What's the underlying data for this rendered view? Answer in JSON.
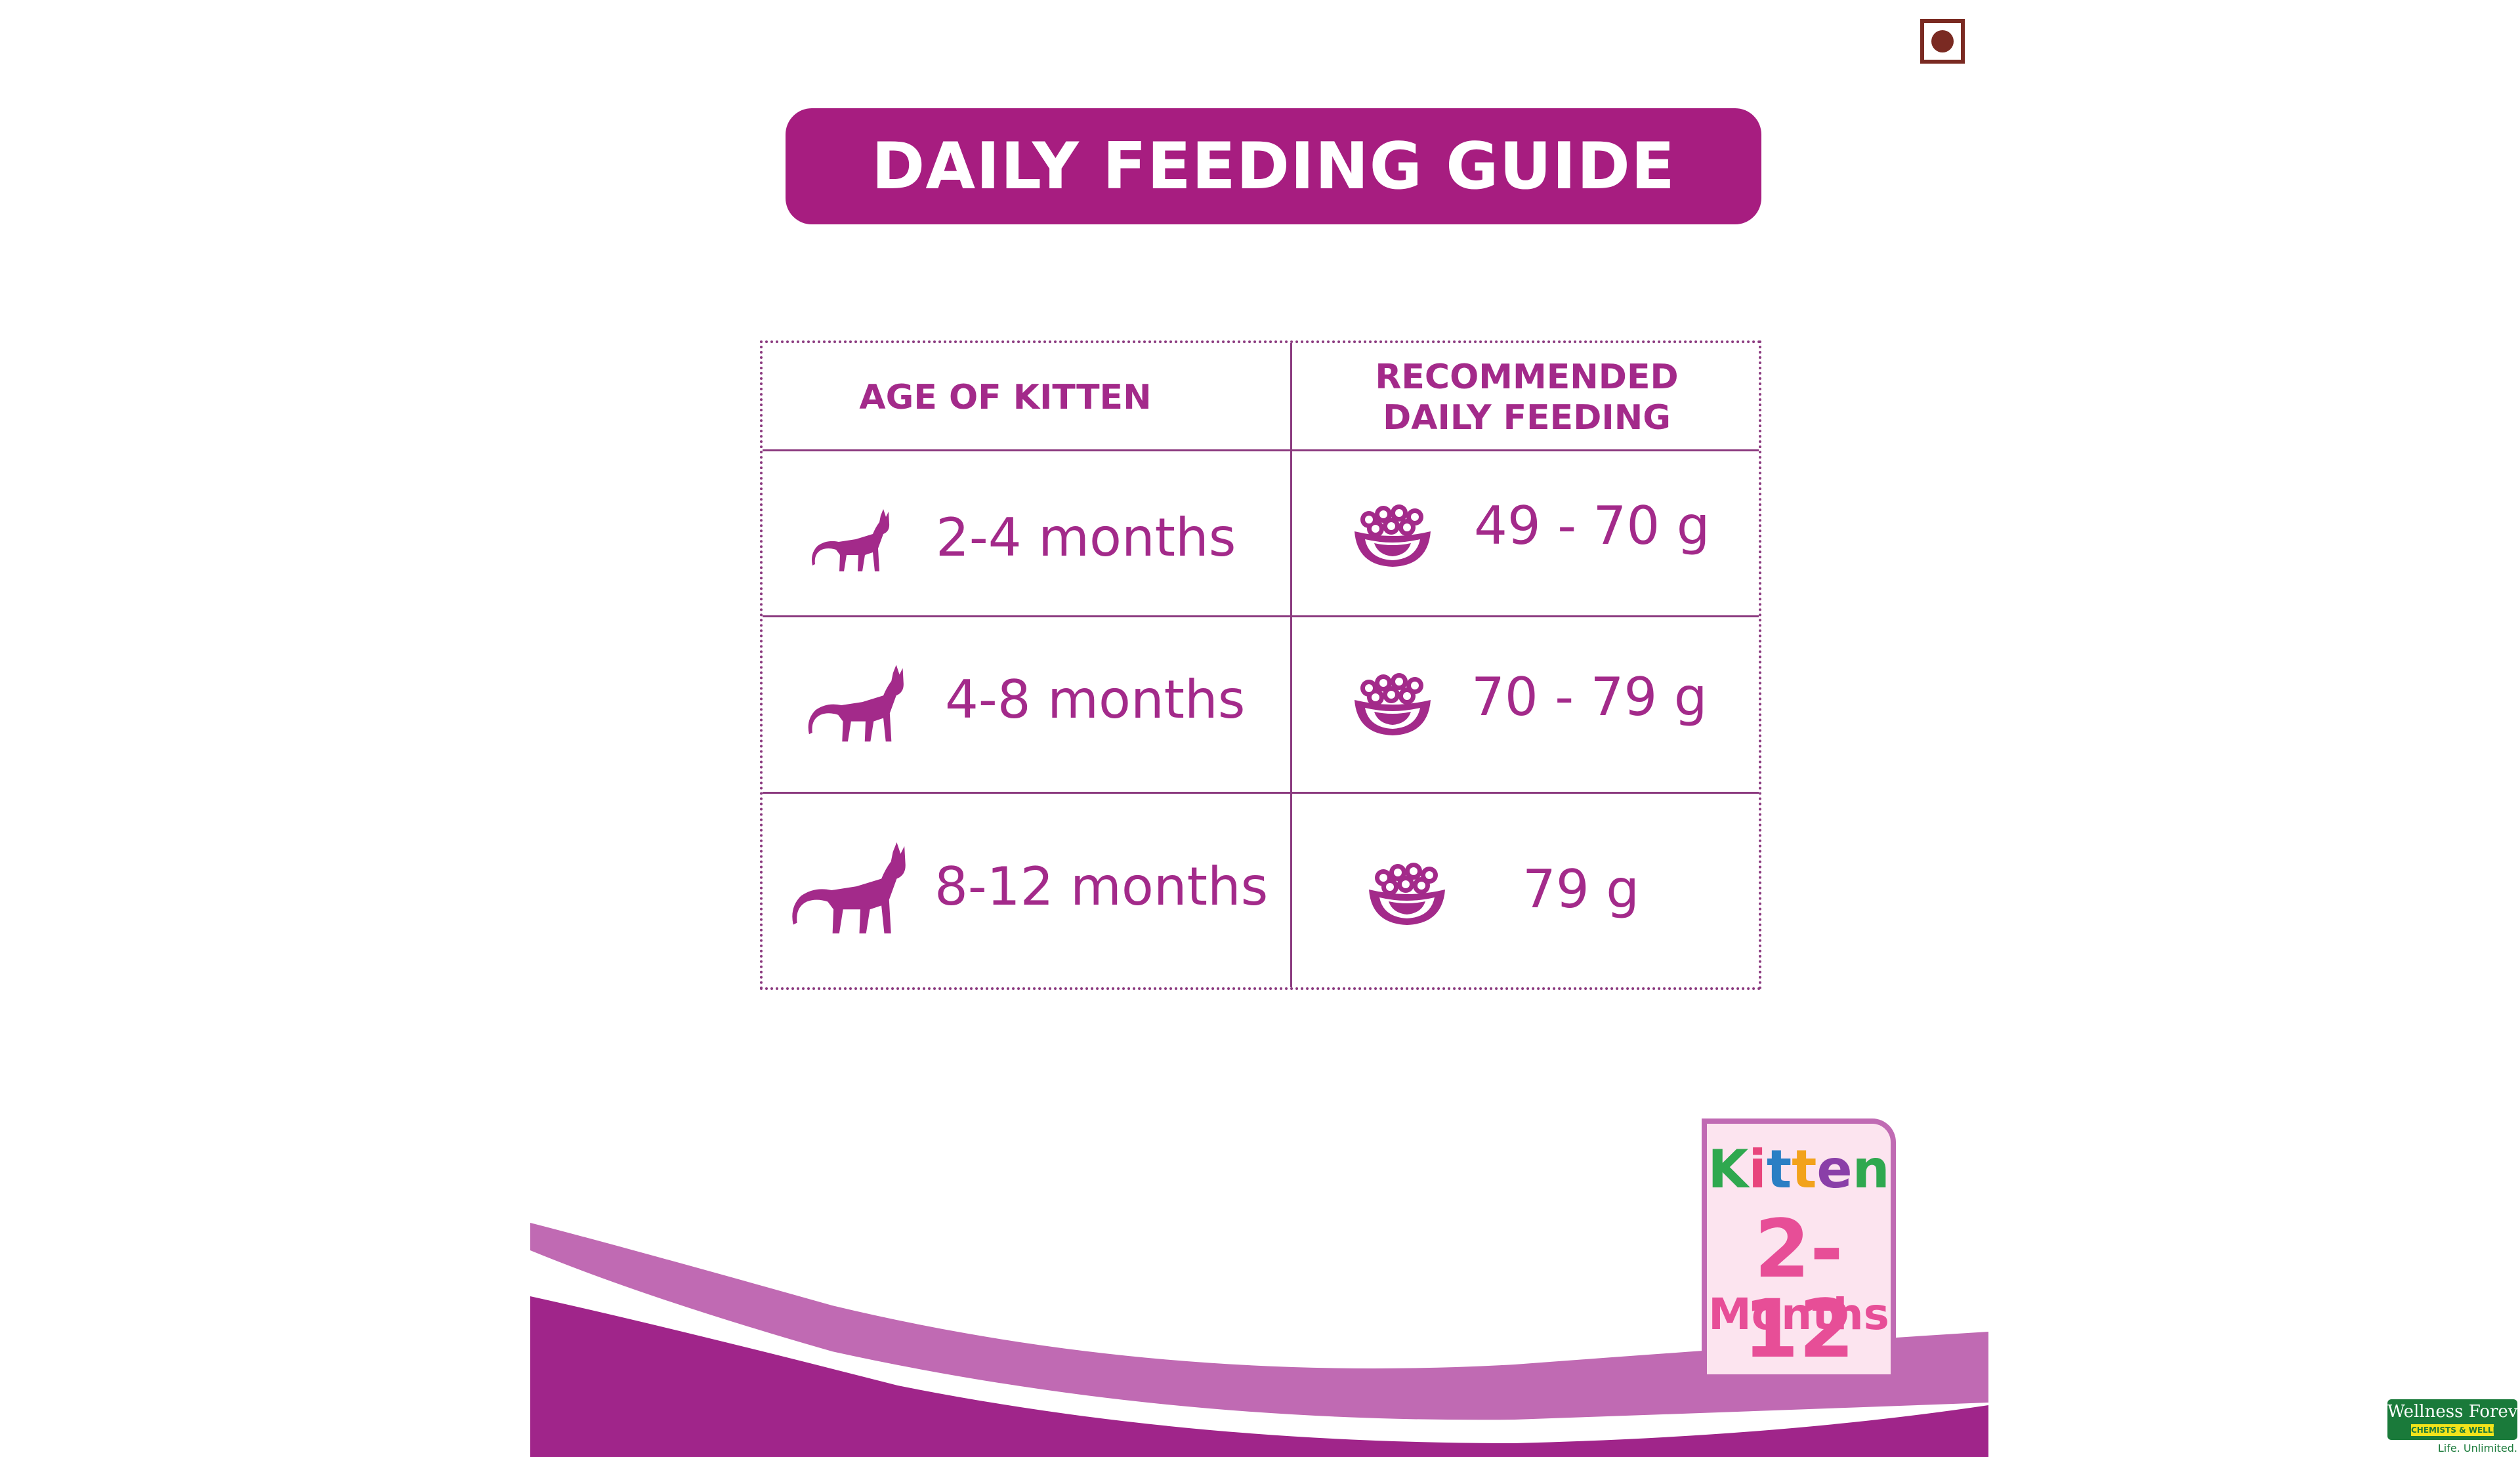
{
  "header": {
    "title": "DAILY FEEDING GUIDE"
  },
  "table": {
    "col_age_header": "AGE OF KITTEN",
    "col_feeding_header_line1": "RECOMMENDED",
    "col_feeding_header_line2": "DAILY FEEDING",
    "rows": [
      {
        "age": "2-4 months",
        "amount": "49 - 70 g",
        "cat_icon": "small-cat-icon",
        "bowl_icon": "food-bowl-icon"
      },
      {
        "age": "4-8 months",
        "amount": "70 - 79 g",
        "cat_icon": "medium-cat-icon",
        "bowl_icon": "food-bowl-icon"
      },
      {
        "age": "8-12 months",
        "amount": "79 g",
        "cat_icon": "large-cat-icon",
        "bowl_icon": "food-bowl-icon"
      }
    ]
  },
  "badge": {
    "word_letters": [
      "K",
      "i",
      "t",
      "t",
      "e",
      "n"
    ],
    "word_colors": [
      "#2fa84f",
      "#e8457c",
      "#2a7fc4",
      "#f2a21b",
      "#8a3fa8",
      "#2fa84f"
    ],
    "range": "2-12",
    "unit": "Months"
  },
  "brand": {
    "name": "Wellness Forever",
    "sub": "CHEMISTS & WELLNESS",
    "tagline": "Life. Unlimited."
  },
  "colors": {
    "primary": "#a71d80",
    "text_purple": "#a32a8a",
    "swoosh_light": "#c06ab3",
    "swoosh_dark": "#a0258a",
    "veg_mark": "#7a2a22"
  }
}
